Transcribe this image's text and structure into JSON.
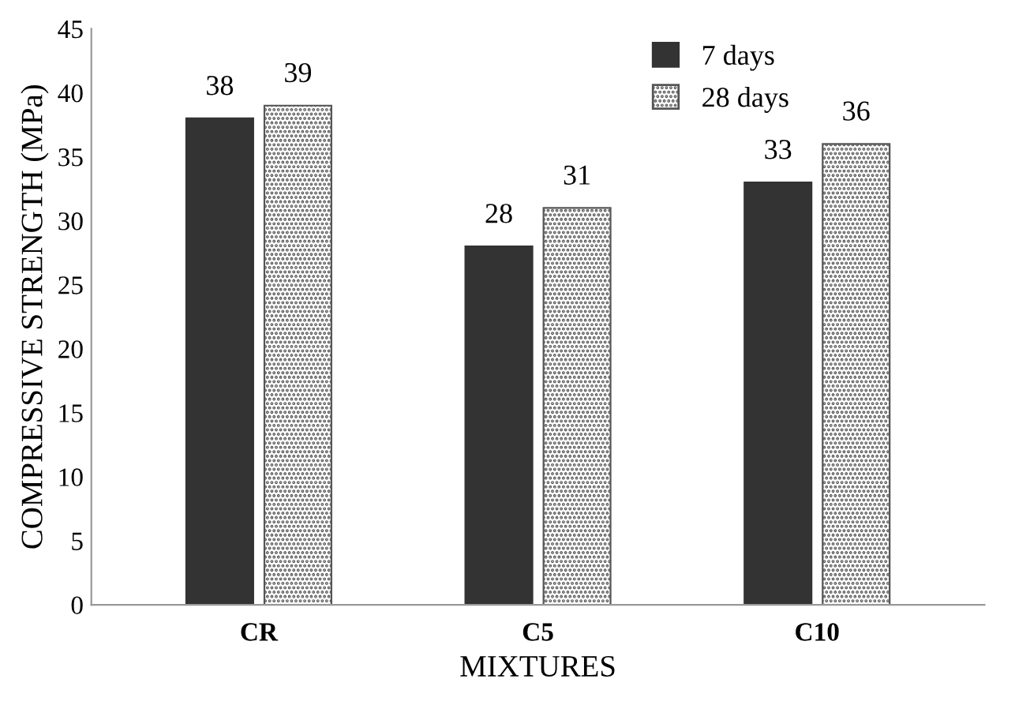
{
  "chart_data": {
    "type": "bar",
    "xlabel": "MIXTURES",
    "ylabel": "COMPRESSIVE STRENGTH (MPa)",
    "categories": [
      "CR",
      "C5",
      "C10"
    ],
    "series": [
      {
        "name": "7 days",
        "color": "#333333",
        "values": [
          38,
          28,
          33
        ]
      },
      {
        "name": "28 days",
        "color": "#555555",
        "values": [
          39,
          31,
          36
        ]
      }
    ],
    "ylim": [
      0,
      45
    ],
    "yticks": [
      0,
      5,
      10,
      15,
      20,
      25,
      30,
      35,
      40,
      45
    ],
    "grid": false,
    "legend": "top right",
    "data_labels": true
  }
}
